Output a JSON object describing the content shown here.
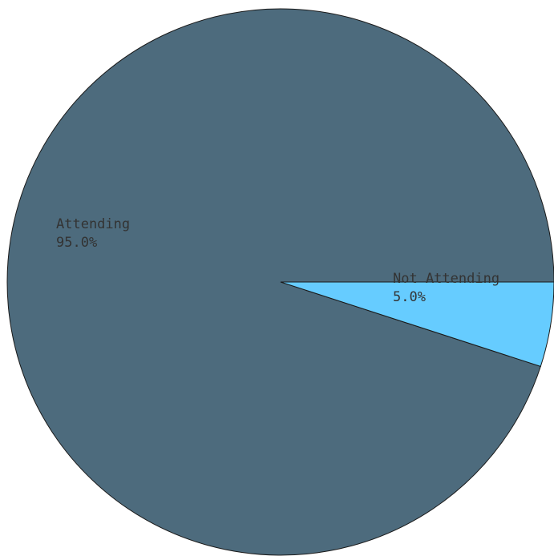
{
  "chart_data": {
    "type": "pie",
    "slices": [
      {
        "label": "Attending",
        "value": 95.0,
        "percent_label": "95.0%",
        "color": "#4d6b7d",
        "label_color": "#333333"
      },
      {
        "label": "Not Attending",
        "value": 5.0,
        "percent_label": "5.0%",
        "color": "#66ccff",
        "label_color": "#333333"
      }
    ]
  }
}
